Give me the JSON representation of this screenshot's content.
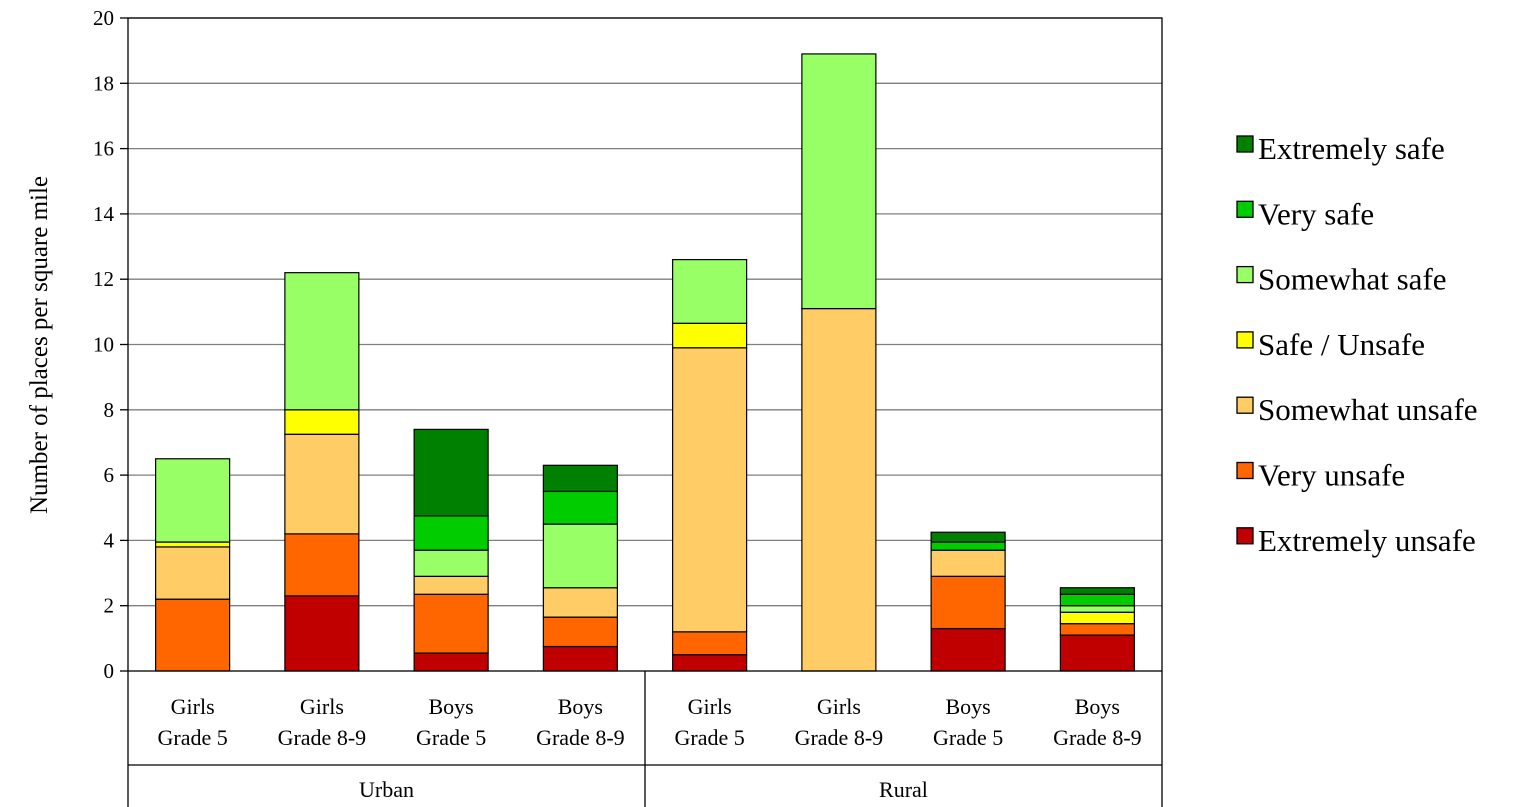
{
  "chart_data": {
    "type": "bar",
    "stacked": true,
    "ylabel": "Number of places per square mile",
    "xlabel": "",
    "ylim": [
      0,
      20
    ],
    "yticks": [
      "0",
      "2",
      "4",
      "6",
      "8",
      "10",
      "12",
      "14",
      "16",
      "18",
      "20"
    ],
    "grid": true,
    "legend_position": "right",
    "groups": [
      {
        "label": "Urban",
        "categories": [
          [
            "Girls",
            "Grade 5"
          ],
          [
            "Girls",
            "Grade 8-9"
          ],
          [
            "Boys",
            "Grade 5"
          ],
          [
            "Boys",
            "Grade 8-9"
          ]
        ]
      },
      {
        "label": "Rural",
        "categories": [
          [
            "Girls",
            "Grade 5"
          ],
          [
            "Girls",
            "Grade 8-9"
          ],
          [
            "Boys",
            "Grade 5"
          ],
          [
            "Boys",
            "Grade 8-9"
          ]
        ]
      }
    ],
    "series": [
      {
        "name": "Extremely unsafe",
        "color": "#C00000",
        "values": [
          0,
          2.3,
          0.55,
          0.75,
          0.5,
          0,
          1.3,
          1.1
        ]
      },
      {
        "name": "Very unsafe",
        "color": "#FF6600",
        "values": [
          2.2,
          1.9,
          1.8,
          0.9,
          0.7,
          0,
          1.6,
          0.35
        ]
      },
      {
        "name": "Somewhat unsafe",
        "color": "#FFCC66",
        "values": [
          1.6,
          3.05,
          0.55,
          0.9,
          8.7,
          11.1,
          0.8,
          0
        ]
      },
      {
        "name": "Safe / Unsafe",
        "color": "#FFFF00",
        "values": [
          0.15,
          0.75,
          0,
          0,
          0.75,
          0,
          0,
          0.35
        ]
      },
      {
        "name": "Somewhat safe",
        "color": "#99FF66",
        "values": [
          2.55,
          4.2,
          0.8,
          1.95,
          1.95,
          7.8,
          0,
          0.2
        ]
      },
      {
        "name": "Very safe",
        "color": "#00CC00",
        "values": [
          0,
          0,
          1.05,
          1.0,
          0,
          0,
          0.25,
          0.35
        ]
      },
      {
        "name": "Extremely safe",
        "color": "#008000",
        "values": [
          0,
          0,
          2.65,
          0.8,
          0,
          0,
          0.3,
          0.2
        ]
      }
    ]
  }
}
